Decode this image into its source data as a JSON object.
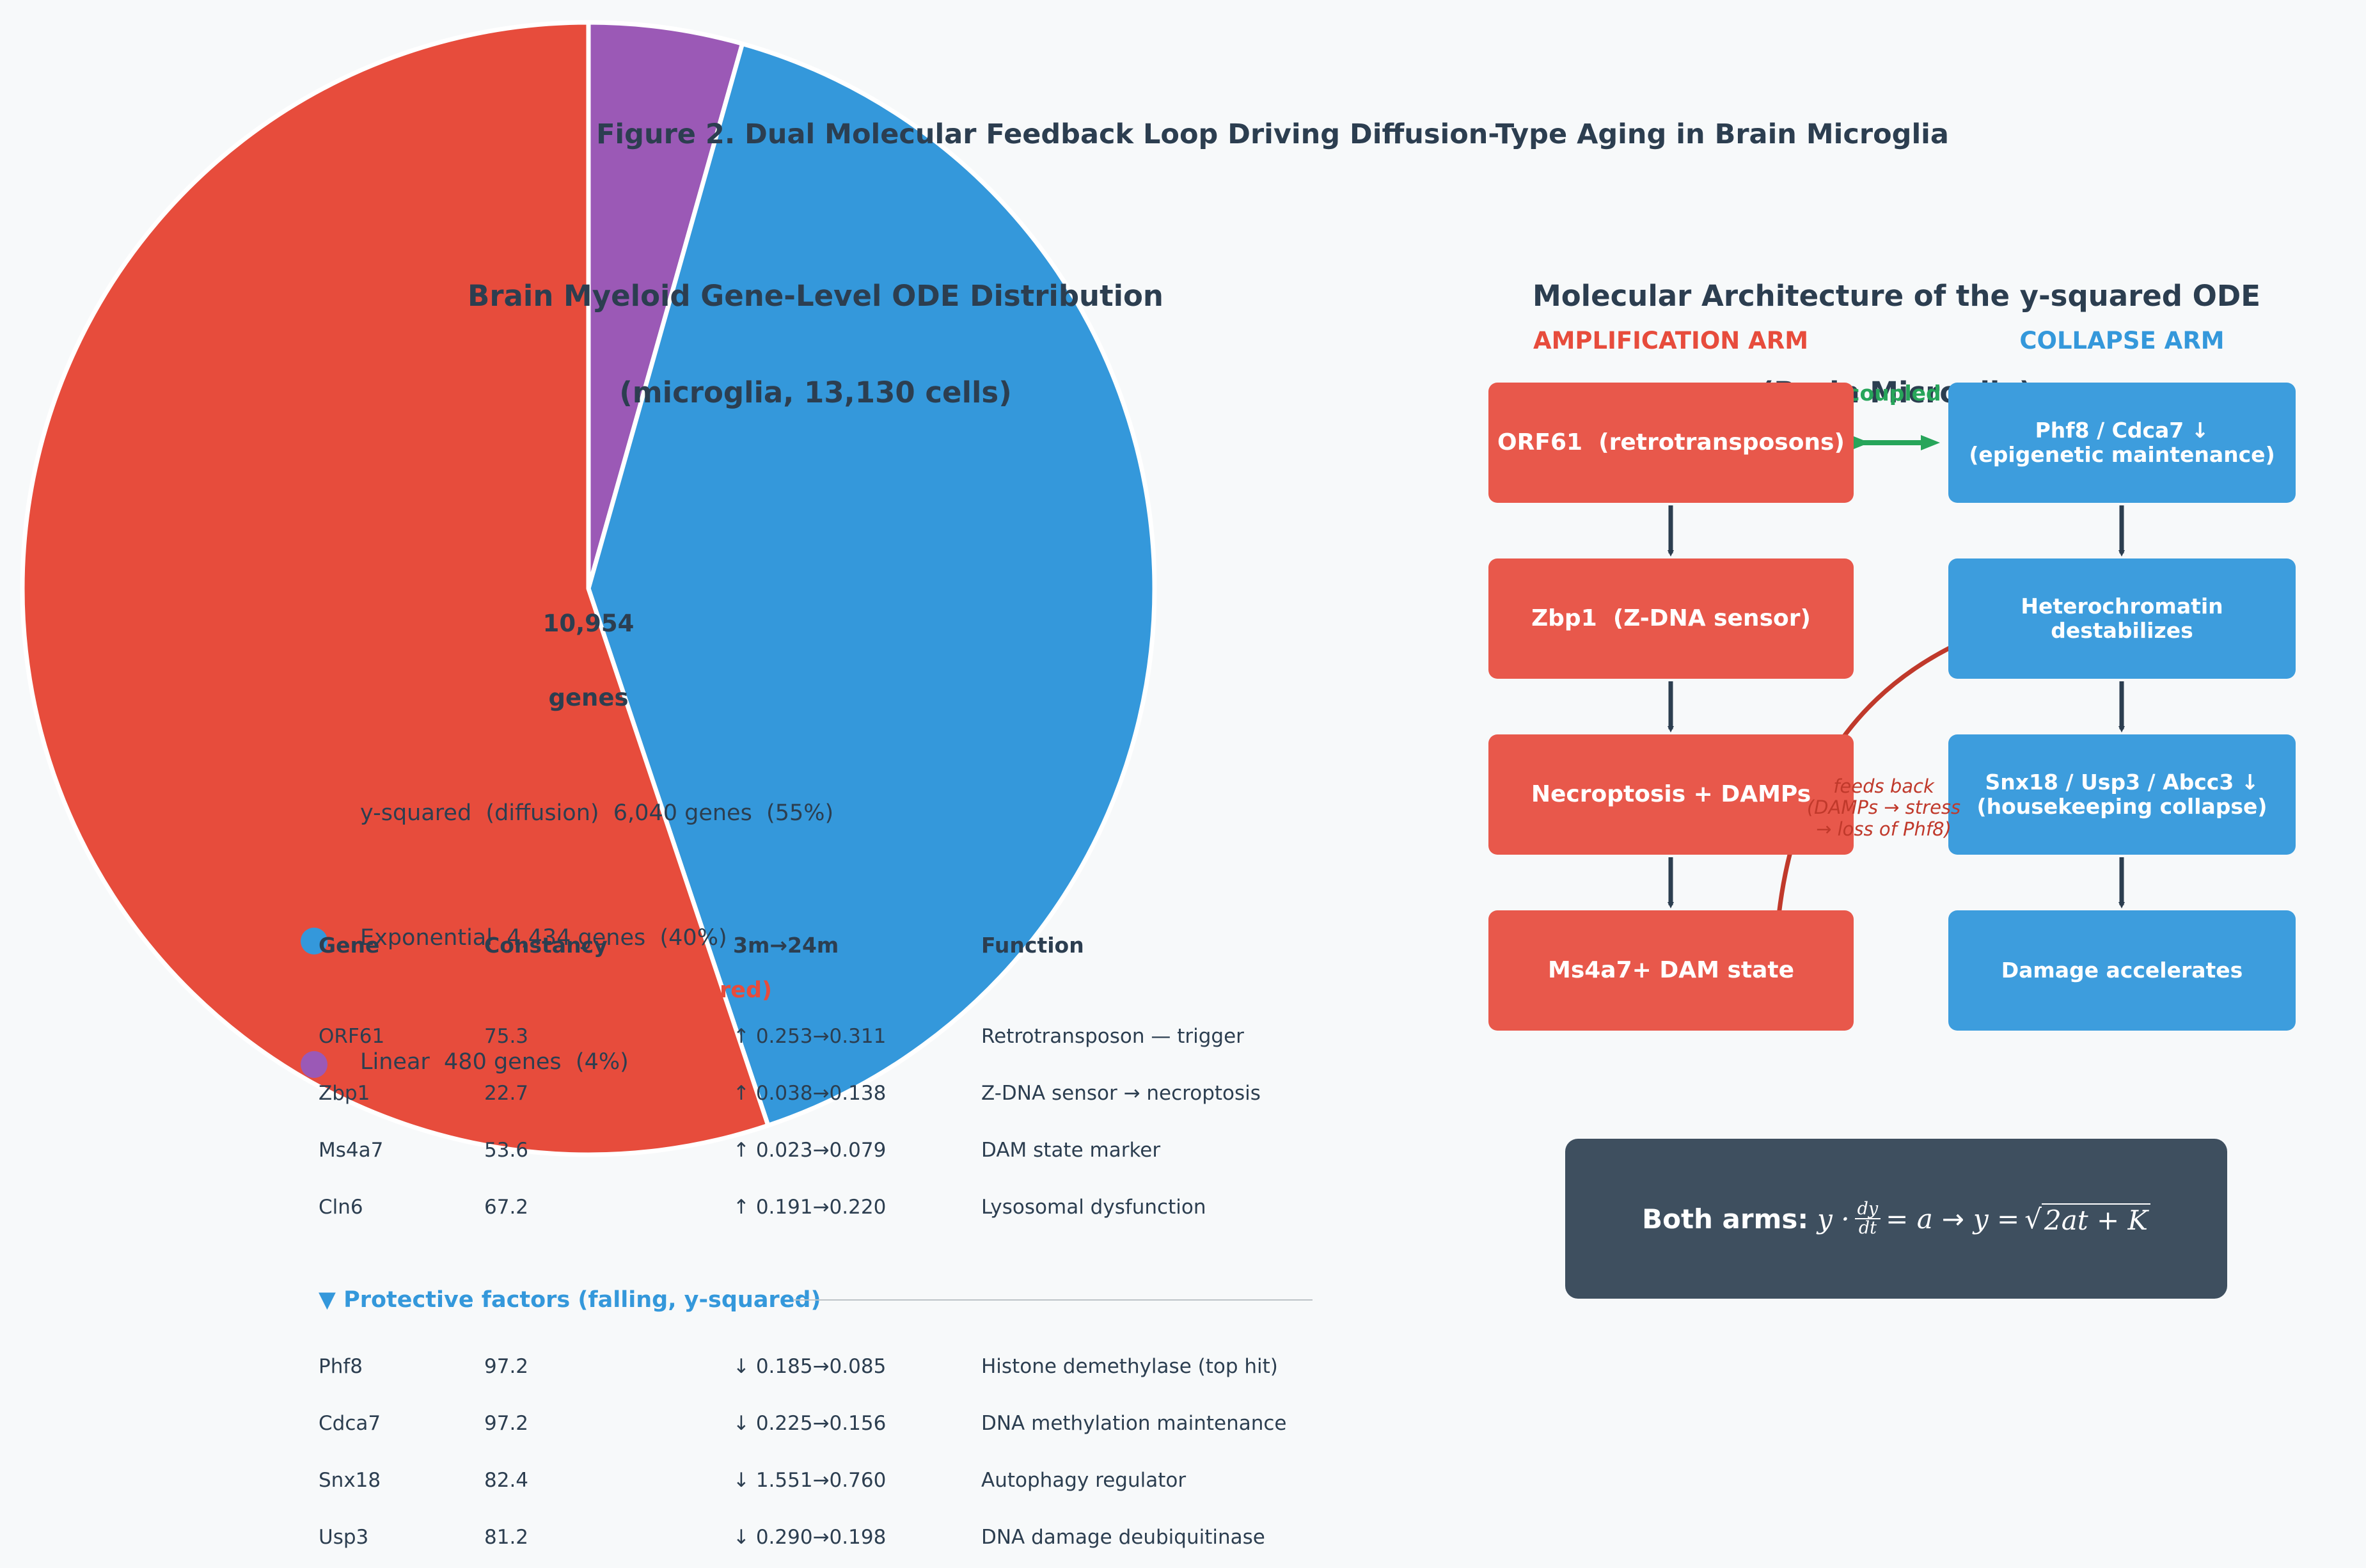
{
  "figure_title": "Figure 2. Dual Molecular Feedback Loop Driving Diffusion-Type Aging in Brain Microglia",
  "pie_panel": {
    "title_line1": "Brain Myeloid Gene-Level ODE Distribution",
    "title_line2": "(microglia, 13,130 cells)",
    "center_line1": "10,954",
    "center_line2": "genes",
    "legend": [
      {
        "label": "y-squared  (diffusion)  6,040 genes  (55%)",
        "color": "#e74c3c"
      },
      {
        "label": "Exponential  4,434 genes  (40%)",
        "color": "#3498db"
      },
      {
        "label": "Linear  480 genes  (4%)",
        "color": "#9b59b6"
      }
    ],
    "partial_text_red": "red)"
  },
  "chart_data": {
    "type": "pie",
    "title": "Brain Myeloid Gene-Level ODE Distribution (microglia, 13,130 cells)",
    "total": 10954,
    "slices": [
      {
        "label": "y-squared  (diffusion)",
        "value": 6040,
        "percent": 55,
        "color": "#e74c3c"
      },
      {
        "label": "Exponential",
        "value": 4434,
        "percent": 40,
        "color": "#3498db"
      },
      {
        "label": "Linear",
        "value": 480,
        "percent": 4,
        "color": "#9b59b6"
      }
    ]
  },
  "table": {
    "headers": [
      "Gene",
      "Constancy",
      "3m→24m",
      "Function"
    ],
    "rising_rows": [
      [
        "ORF61",
        "75.3",
        "↑ 0.253→0.311",
        "Retrotransposon — trigger"
      ],
      [
        "Zbp1",
        "22.7",
        "↑ 0.038→0.138",
        "Z-DNA sensor → necroptosis"
      ],
      [
        "Ms4a7",
        "53.6",
        "↑ 0.023→0.079",
        "DAM state marker"
      ],
      [
        "Cln6",
        "67.2",
        "↑ 0.191→0.220",
        "Lysosomal dysfunction"
      ]
    ],
    "protective_heading": "▼ Protective factors (falling, y-squared)",
    "protective_color": "#3498db",
    "falling_rows": [
      [
        "Phf8",
        "97.2",
        "↓ 0.185→0.085",
        "Histone demethylase (top hit)"
      ],
      [
        "Cdca7",
        "97.2",
        "↓ 0.225→0.156",
        "DNA methylation maintenance"
      ],
      [
        "Snx18",
        "82.4",
        "↓ 1.551→0.760",
        "Autophagy regulator"
      ],
      [
        "Usp3",
        "81.2",
        "↓ 0.290→0.198",
        "DNA damage deubiquitinase"
      ]
    ]
  },
  "architecture_panel": {
    "title_line1": "Molecular Architecture of the y-squared ODE",
    "title_line2": "(Brain Microglia)",
    "amplification_heading": "AMPLIFICATION ARM",
    "collapse_heading": "COLLAPSE ARM",
    "amplification_color": "#e74c3c",
    "collapse_color": "#3498db",
    "amplification_boxes": [
      "ORF61  (retrotransposons)",
      "Zbp1  (Z-DNA sensor)",
      "Necroptosis + DAMPs",
      "Ms4a7+ DAM state"
    ],
    "collapse_boxes": [
      "Phf8 / Cdca7 ↓\n(epigenetic maintenance)",
      "Heterochromatin\ndestabilizes",
      "Snx18 / Usp3 / Abcc3 ↓\n(housekeeping collapse)",
      "Damage accelerates"
    ],
    "coupled_label": "coupled",
    "feedback_label": "feeds back\n(DAMPs → stress\n→ loss of Phf8)",
    "equation_label": "Both arms:",
    "equation": {
      "lhs_y": "y ·",
      "frac_num": "dy",
      "frac_den": "dt",
      "equals_a": "= a",
      "arrow": "→",
      "rhs_y": "y =",
      "sqrt": "√",
      "radicand": "2at + K"
    }
  }
}
